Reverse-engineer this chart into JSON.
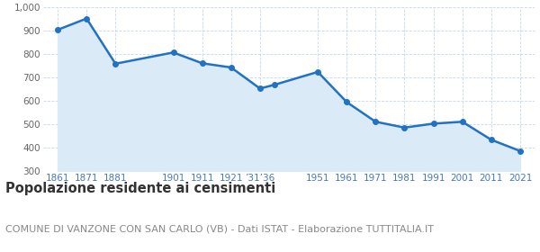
{
  "years": [
    1861,
    1871,
    1881,
    1901,
    1911,
    1921,
    1931,
    1936,
    1951,
    1961,
    1971,
    1981,
    1991,
    2001,
    2011,
    2021
  ],
  "values": [
    905,
    953,
    760,
    808,
    762,
    744,
    654,
    670,
    725,
    596,
    512,
    487,
    504,
    512,
    435,
    387
  ],
  "x_tick_years": [
    1861,
    1871,
    1881,
    1901,
    1911,
    1921,
    1931,
    1951,
    1961,
    1971,
    1981,
    1991,
    2001,
    2011,
    2021
  ],
  "x_tick_labels": [
    "1861",
    "1871",
    "1881",
    "1901",
    "1911",
    "1921",
    "’31’36",
    "1951",
    "1961",
    "1971",
    "1981",
    "1991",
    "2001",
    "2011",
    "2021"
  ],
  "line_color": "#2272c3",
  "fill_color": "#daeaf7",
  "marker_size": 4,
  "line_width": 1.8,
  "ylim": [
    300,
    1000
  ],
  "ytick_values": [
    300,
    400,
    500,
    600,
    700,
    800,
    900,
    1000
  ],
  "ytick_labels": [
    "300",
    "400",
    "500",
    "600",
    "700",
    "800",
    "900",
    "1,000"
  ],
  "grid_color": "#c8d8e8",
  "background_color": "#ffffff",
  "title": "Popolazione residente ai censimenti",
  "subtitle": "COMUNE DI VANZONE CON SAN CARLO (VB) - Dati ISTAT - Elaborazione TUTTITALIA.IT",
  "title_fontsize": 10.5,
  "subtitle_fontsize": 8.0,
  "tick_color": "#4477bb"
}
